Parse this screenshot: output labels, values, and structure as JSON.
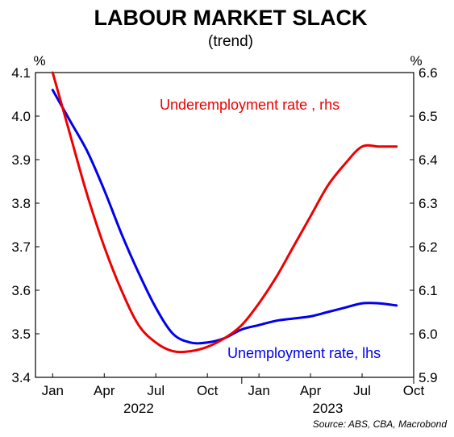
{
  "chart_data": {
    "type": "line",
    "title": "LABOUR MARKET SLACK",
    "subtitle": "(trend)",
    "source": "Source: ABS, CBA, Macrobond",
    "left_axis": {
      "unit": "%",
      "ylim": [
        3.4,
        4.1
      ],
      "ticks": [
        "4.1",
        "4.0",
        "3.9",
        "3.8",
        "3.7",
        "3.6",
        "3.5",
        "3.4"
      ]
    },
    "right_axis": {
      "unit": "%",
      "ylim": [
        5.9,
        6.6
      ],
      "ticks": [
        "6.6",
        "6.5",
        "6.4",
        "6.3",
        "6.2",
        "6.1",
        "6.0",
        "5.9"
      ]
    },
    "x_axis": {
      "month_ticks": [
        "Jan",
        "Apr",
        "Jul",
        "Oct",
        "Jan",
        "Apr",
        "Jul",
        "Oct"
      ],
      "year_labels": [
        "2022",
        "2023"
      ],
      "range": [
        "2021-12",
        "2023-10"
      ]
    },
    "grid": false,
    "series": [
      {
        "name": "Unemployment rate, lhs",
        "axis": "left",
        "color": "#0000ee",
        "x": [
          "2022-01",
          "2022-02",
          "2022-03",
          "2022-04",
          "2022-05",
          "2022-06",
          "2022-07",
          "2022-08",
          "2022-09",
          "2022-10",
          "2022-11",
          "2022-12",
          "2023-01",
          "2023-02",
          "2023-03",
          "2023-04",
          "2023-05",
          "2023-06",
          "2023-07",
          "2023-08",
          "2023-09"
        ],
        "values": [
          4.06,
          3.99,
          3.92,
          3.83,
          3.73,
          3.64,
          3.56,
          3.5,
          3.48,
          3.48,
          3.49,
          3.51,
          3.52,
          3.53,
          3.535,
          3.54,
          3.55,
          3.56,
          3.57,
          3.57,
          3.565
        ]
      },
      {
        "name": "Underemployment rate , rhs",
        "axis": "right",
        "color": "#ee0000",
        "x": [
          "2022-01",
          "2022-02",
          "2022-03",
          "2022-04",
          "2022-05",
          "2022-06",
          "2022-07",
          "2022-08",
          "2022-09",
          "2022-10",
          "2022-11",
          "2022-12",
          "2023-01",
          "2023-02",
          "2023-03",
          "2023-04",
          "2023-05",
          "2023-06",
          "2023-07",
          "2023-08",
          "2023-09"
        ],
        "values": [
          6.6,
          6.46,
          6.32,
          6.2,
          6.1,
          6.02,
          5.98,
          5.96,
          5.96,
          5.97,
          5.99,
          6.02,
          6.07,
          6.13,
          6.2,
          6.27,
          6.34,
          6.39,
          6.43,
          6.43,
          6.43
        ]
      }
    ],
    "annotations": [
      {
        "text": "Underemployment rate , rhs",
        "color": "#ee0000"
      },
      {
        "text": "Unemployment rate, lhs",
        "color": "#0000ee"
      }
    ]
  }
}
